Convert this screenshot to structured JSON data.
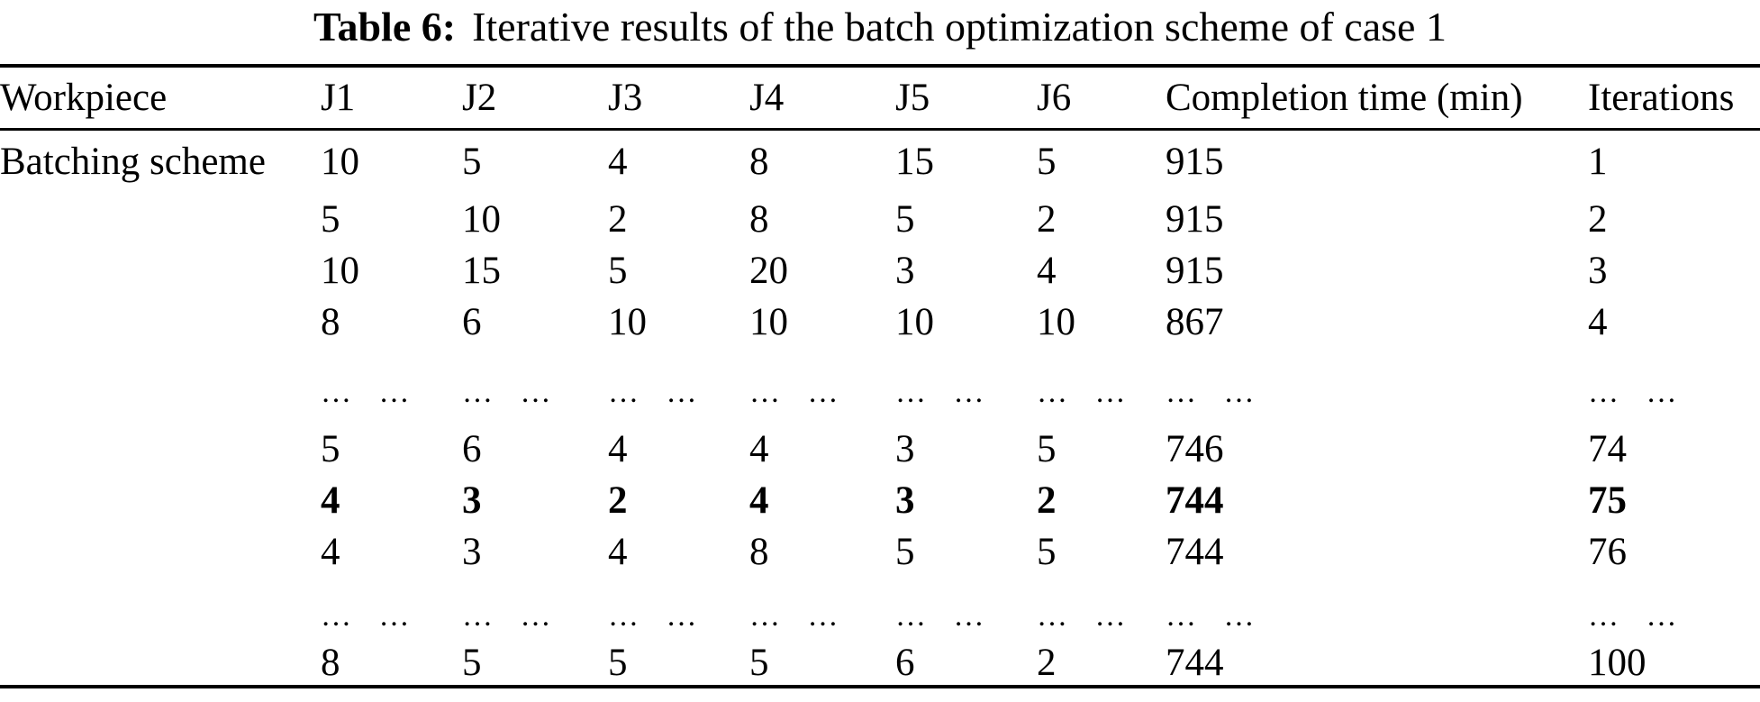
{
  "caption": {
    "label": "Table 6:",
    "text": "Iterative results of the batch optimization scheme of case 1"
  },
  "table": {
    "columns": [
      "Workpiece",
      "J1",
      "J2",
      "J3",
      "J4",
      "J5",
      "J6",
      "Completion time (min)",
      "Iterations"
    ],
    "ellipsis": "… …",
    "rows": [
      {
        "label": "Batching scheme",
        "values": [
          "10",
          "5",
          "4",
          "8",
          "15",
          "5",
          "915",
          "1"
        ],
        "bold": false,
        "dots": false
      },
      {
        "label": "",
        "values": [
          "5",
          "10",
          "2",
          "8",
          "5",
          "2",
          "915",
          "2"
        ],
        "bold": false,
        "dots": false
      },
      {
        "label": "",
        "values": [
          "10",
          "15",
          "5",
          "20",
          "3",
          "4",
          "915",
          "3"
        ],
        "bold": false,
        "dots": false
      },
      {
        "label": "",
        "values": [
          "8",
          "6",
          "10",
          "10",
          "10",
          "10",
          "867",
          "4"
        ],
        "bold": false,
        "dots": false
      },
      {
        "label": "",
        "values": [],
        "bold": false,
        "dots": true
      },
      {
        "label": "",
        "values": [
          "5",
          "6",
          "4",
          "4",
          "3",
          "5",
          "746",
          "74"
        ],
        "bold": false,
        "dots": false
      },
      {
        "label": "",
        "values": [
          "4",
          "3",
          "2",
          "4",
          "3",
          "2",
          "744",
          "75"
        ],
        "bold": true,
        "dots": false
      },
      {
        "label": "",
        "values": [
          "4",
          "3",
          "4",
          "8",
          "5",
          "5",
          "744",
          "76"
        ],
        "bold": false,
        "dots": false
      },
      {
        "label": "",
        "values": [],
        "bold": false,
        "dots": true
      },
      {
        "label": "",
        "values": [
          "8",
          "5",
          "5",
          "5",
          "6",
          "2",
          "744",
          "100"
        ],
        "bold": false,
        "dots": false
      }
    ]
  },
  "chart_data": {
    "type": "table",
    "title": "Table 6: Iterative results of the batch optimization scheme of case 1",
    "columns": [
      "Workpiece",
      "J1",
      "J2",
      "J3",
      "J4",
      "J5",
      "J6",
      "Completion time (min)",
      "Iterations"
    ],
    "rows": [
      [
        "Batching scheme",
        10,
        5,
        4,
        8,
        15,
        5,
        915,
        1
      ],
      [
        "",
        5,
        10,
        2,
        8,
        5,
        2,
        915,
        2
      ],
      [
        "",
        10,
        15,
        5,
        20,
        3,
        4,
        915,
        3
      ],
      [
        "",
        8,
        6,
        10,
        10,
        10,
        10,
        867,
        4
      ],
      [
        "",
        "……",
        "……",
        "……",
        "……",
        "……",
        "……",
        "……",
        "……"
      ],
      [
        "",
        5,
        6,
        4,
        4,
        3,
        5,
        746,
        74
      ],
      [
        "",
        4,
        3,
        2,
        4,
        3,
        2,
        744,
        75
      ],
      [
        "",
        4,
        3,
        4,
        8,
        5,
        5,
        744,
        76
      ],
      [
        "",
        "……",
        "……",
        "……",
        "……",
        "……",
        "……",
        "……",
        "……"
      ],
      [
        "",
        8,
        5,
        5,
        5,
        6,
        2,
        744,
        100
      ]
    ],
    "notes": "Row with iteration 75 is bold (optimal batch: 4,3,2,4,3,2 with completion time 744)"
  }
}
